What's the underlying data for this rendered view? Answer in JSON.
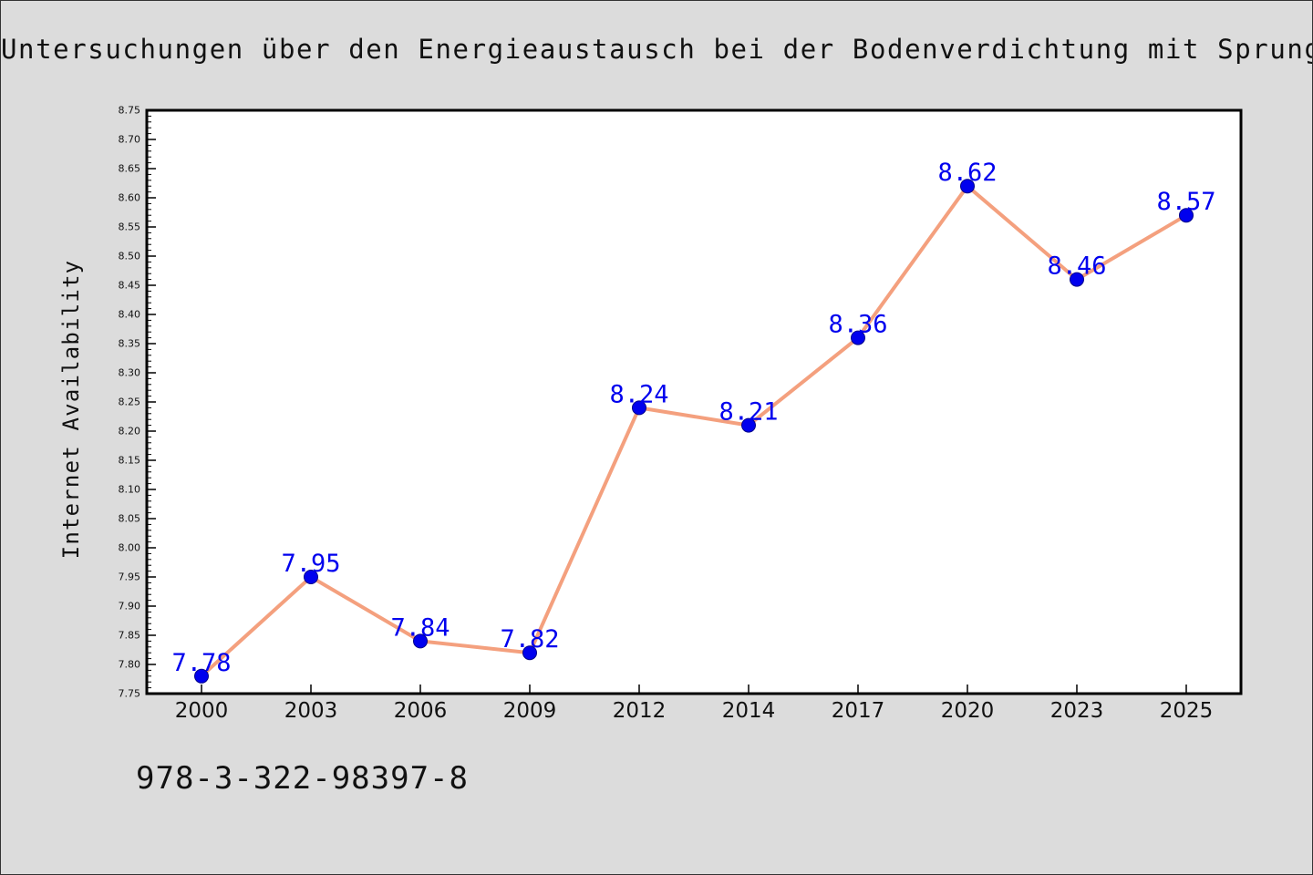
{
  "title": "Untersuchungen über den Energieaustausch bei der Bodenverdichtung mit Sprungrüttlern",
  "footer_text": "978-3-322-98397-8",
  "chart_data": {
    "type": "line",
    "title": "Untersuchungen über den Energieaustausch bei der Bodenverdichtung mit Sprungrüttlern",
    "xlabel": "",
    "ylabel": "Internet Availability",
    "categories": [
      "2000",
      "2003",
      "2006",
      "2009",
      "2012",
      "2014",
      "2017",
      "2020",
      "2023",
      "2025"
    ],
    "series": [
      {
        "values": [
          7.78,
          7.95,
          7.84,
          7.82,
          8.24,
          8.21,
          8.36,
          8.62,
          8.46,
          8.57
        ]
      }
    ],
    "data_labels": [
      "7.78",
      "7.95",
      "7.84",
      "7.82",
      "8.24",
      "8.21",
      "8.36",
      "8.62",
      "8.46",
      "8.57"
    ],
    "ylim": [
      7.75,
      8.75
    ],
    "yticks": [
      "7.75",
      "7.80",
      "7.85",
      "7.90",
      "7.95",
      "8.00",
      "8.05",
      "8.10",
      "8.15",
      "8.20",
      "8.25",
      "8.30",
      "8.35",
      "8.40",
      "8.45",
      "8.50",
      "8.55",
      "8.60",
      "8.65",
      "8.70",
      "8.75"
    ],
    "grid": false,
    "legend": "none",
    "colors": {
      "background": "#dcdcdc",
      "plot_background": "#ffffff",
      "line": "#f4a07e",
      "marker": "#0000ee",
      "data_label": "#0000ee",
      "axis": "#000000"
    }
  }
}
